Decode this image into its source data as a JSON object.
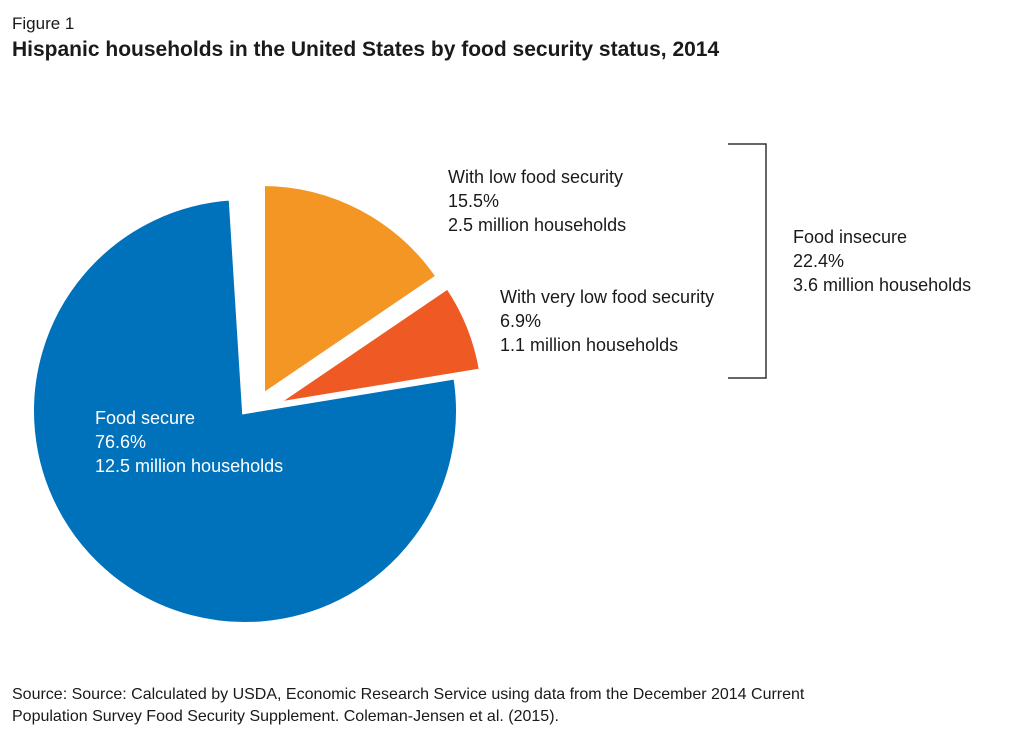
{
  "figure_label": "Figure 1",
  "title": "Hispanic households in the United States by food security status, 2014",
  "source": {
    "line1": "Source: Source: Calculated by USDA, Economic Research Service using data from the December 2014 Current",
    "line2": "Population Survey Food Security Supplement. Coleman-Jensen et al. (2015)."
  },
  "chart_data": {
    "type": "pie",
    "title": "Hispanic households in the United States by food security status, 2014",
    "slices": [
      {
        "name": "With low food security",
        "percent": 15.5,
        "households": "2.5 million households",
        "color": "#F39623",
        "exploded": true
      },
      {
        "name": "With very low food security",
        "percent": 6.9,
        "households": "1.1 million households",
        "color": "#EF5A24",
        "exploded": true
      },
      {
        "name": "Food secure",
        "percent": 76.6,
        "households": "12.5 million households",
        "color": "#0071BB",
        "exploded": false
      }
    ],
    "group_annotation": {
      "name": "Food insecure",
      "percent": 22.4,
      "households": "3.6 million households"
    }
  },
  "labels": {
    "low": {
      "name": "With low food security",
      "pct": "15.5%",
      "hh": "2.5 million households"
    },
    "very_low": {
      "name": "With very low food security",
      "pct": "6.9%",
      "hh": "1.1 million households"
    },
    "secure": {
      "name": "Food secure",
      "pct": "76.6%",
      "hh": "12.5 million households"
    },
    "insecure": {
      "name": "Food insecure",
      "pct": "22.4%",
      "hh": "3.6 million households"
    }
  }
}
